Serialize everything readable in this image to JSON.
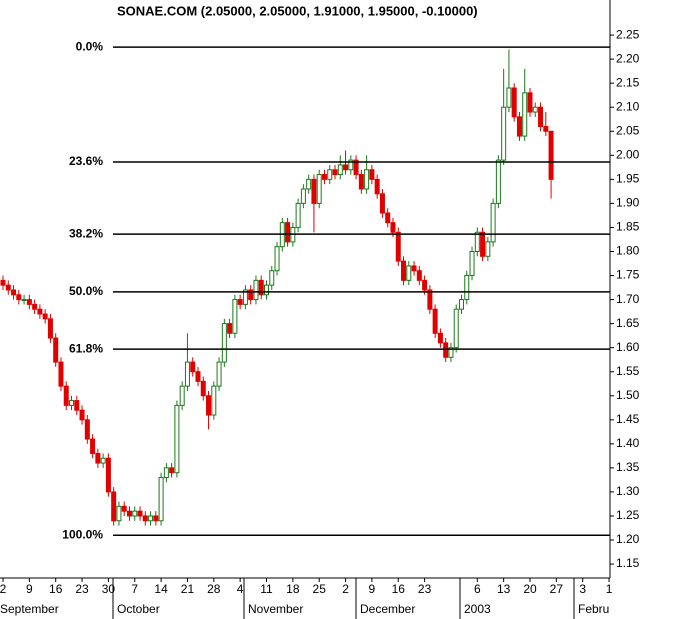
{
  "chart_data": {
    "type": "candlestick",
    "title": "SONAE.COM (2.05000, 2.05000, 1.91000, 1.95000, -0.10000)",
    "categories": [
      "2",
      null,
      null,
      null,
      null,
      "9",
      null,
      null,
      null,
      null,
      "16",
      null,
      null,
      null,
      null,
      "23",
      null,
      null,
      null,
      null,
      "30",
      null,
      null,
      null,
      null,
      "7",
      null,
      null,
      null,
      null,
      "14",
      null,
      null,
      null,
      null,
      "21",
      null,
      null,
      null,
      null,
      "28",
      null,
      null,
      null,
      null,
      "4",
      null,
      null,
      null,
      null,
      "11",
      null,
      null,
      null,
      null,
      "18",
      null,
      null,
      null,
      null,
      "25",
      null,
      null,
      null,
      null,
      "2",
      null,
      null,
      null,
      null,
      "9",
      null,
      null,
      null,
      null,
      "16",
      null,
      null,
      null,
      null,
      "23",
      null,
      null,
      null,
      null,
      null,
      null,
      null,
      null,
      null,
      "6",
      null,
      null,
      null,
      null,
      "13",
      null,
      null,
      null,
      null,
      "20",
      null,
      null,
      null,
      null,
      "27",
      null,
      null,
      null,
      null,
      "3",
      null,
      null,
      null,
      null,
      "1"
    ],
    "months": [
      "September",
      "October",
      "November",
      "December",
      "2003",
      "Febru"
    ],
    "open": [
      1.74,
      1.73,
      1.72,
      1.71,
      1.7,
      1.7,
      1.69,
      1.68,
      1.67,
      1.66,
      1.62,
      1.57,
      1.52,
      1.48,
      1.49,
      1.47,
      1.45,
      1.41,
      1.38,
      1.36,
      1.37,
      1.3,
      1.24,
      1.27,
      1.26,
      1.25,
      1.26,
      1.25,
      1.24,
      1.25,
      1.24,
      1.33,
      1.35,
      1.34,
      1.48,
      1.52,
      1.57,
      1.55,
      1.53,
      1.5,
      1.46,
      1.52,
      1.57,
      1.65,
      1.63,
      1.7,
      1.69,
      1.72,
      1.7,
      1.74,
      1.71,
      1.73,
      1.76,
      1.81,
      1.86,
      1.82,
      1.85,
      1.9,
      1.93,
      1.95,
      1.9,
      1.96,
      1.95,
      1.97,
      1.96,
      1.98,
      1.97,
      1.99,
      1.96,
      1.93,
      1.97,
      1.95,
      1.92,
      1.88,
      1.86,
      1.84,
      1.78,
      1.74,
      1.77,
      1.76,
      1.74,
      1.72,
      1.68,
      1.63,
      1.61,
      1.58,
      1.6,
      1.68,
      1.7,
      1.75,
      1.8,
      1.84,
      1.79,
      1.82,
      1.9,
      1.99,
      2.1,
      2.14,
      2.08,
      2.04,
      2.13,
      2.09,
      2.1,
      2.06,
      2.05,
      null,
      null,
      null,
      null,
      null,
      null,
      null,
      null,
      null,
      null,
      null
    ],
    "high": [
      1.75,
      1.74,
      1.73,
      1.72,
      1.71,
      1.71,
      1.7,
      1.69,
      1.68,
      1.67,
      1.63,
      1.58,
      1.53,
      1.5,
      1.5,
      1.48,
      1.46,
      1.42,
      1.39,
      1.38,
      1.38,
      1.31,
      1.28,
      1.28,
      1.27,
      1.27,
      1.27,
      1.26,
      1.26,
      1.26,
      1.34,
      1.36,
      1.36,
      1.49,
      1.53,
      1.63,
      1.58,
      1.56,
      1.54,
      1.51,
      1.53,
      1.58,
      1.66,
      1.66,
      1.71,
      1.71,
      1.73,
      1.73,
      1.75,
      1.75,
      1.74,
      1.77,
      1.82,
      1.87,
      1.87,
      1.86,
      1.91,
      1.94,
      1.96,
      1.96,
      1.97,
      1.97,
      1.98,
      1.98,
      2.0,
      2.01,
      2.0,
      2.0,
      1.97,
      2.0,
      1.98,
      1.96,
      1.93,
      1.89,
      1.87,
      1.85,
      1.79,
      1.78,
      1.78,
      1.77,
      1.75,
      1.73,
      1.69,
      1.64,
      1.62,
      1.61,
      1.69,
      1.71,
      1.76,
      1.81,
      1.85,
      1.85,
      1.83,
      1.91,
      2.0,
      2.18,
      2.22,
      2.15,
      2.09,
      2.18,
      2.14,
      2.11,
      2.11,
      2.09,
      2.05,
      null,
      null,
      null,
      null,
      null,
      null,
      null,
      null,
      null,
      null,
      null
    ],
    "low": [
      1.72,
      1.71,
      1.7,
      1.69,
      1.69,
      1.68,
      1.67,
      1.66,
      1.65,
      1.61,
      1.56,
      1.51,
      1.47,
      1.47,
      1.46,
      1.44,
      1.4,
      1.37,
      1.35,
      1.35,
      1.29,
      1.23,
      1.23,
      1.25,
      1.24,
      1.24,
      1.24,
      1.23,
      1.23,
      1.23,
      1.23,
      1.32,
      1.33,
      1.33,
      1.47,
      1.51,
      1.54,
      1.52,
      1.49,
      1.43,
      1.45,
      1.51,
      1.56,
      1.62,
      1.62,
      1.68,
      1.68,
      1.69,
      1.69,
      1.7,
      1.7,
      1.72,
      1.75,
      1.8,
      1.81,
      1.81,
      1.84,
      1.89,
      1.92,
      1.84,
      1.89,
      1.94,
      1.94,
      1.95,
      1.95,
      1.96,
      1.96,
      1.95,
      1.92,
      1.92,
      1.94,
      1.91,
      1.87,
      1.85,
      1.83,
      1.77,
      1.73,
      1.73,
      1.75,
      1.73,
      1.71,
      1.67,
      1.62,
      1.6,
      1.57,
      1.57,
      1.59,
      1.67,
      1.69,
      1.74,
      1.79,
      1.78,
      1.78,
      1.81,
      1.89,
      1.98,
      2.09,
      2.07,
      2.03,
      2.03,
      2.08,
      2.08,
      2.05,
      2.04,
      1.91,
      null,
      null,
      null,
      null,
      null,
      null,
      null,
      null,
      null,
      null,
      null
    ],
    "close": [
      1.73,
      1.72,
      1.71,
      1.7,
      1.7,
      1.69,
      1.68,
      1.67,
      1.66,
      1.62,
      1.57,
      1.52,
      1.48,
      1.49,
      1.47,
      1.45,
      1.41,
      1.38,
      1.36,
      1.37,
      1.3,
      1.24,
      1.27,
      1.26,
      1.25,
      1.26,
      1.25,
      1.24,
      1.25,
      1.24,
      1.33,
      1.35,
      1.34,
      1.48,
      1.52,
      1.57,
      1.55,
      1.53,
      1.5,
      1.46,
      1.52,
      1.57,
      1.65,
      1.63,
      1.7,
      1.69,
      1.72,
      1.7,
      1.74,
      1.71,
      1.73,
      1.76,
      1.81,
      1.86,
      1.82,
      1.85,
      1.9,
      1.93,
      1.95,
      1.9,
      1.96,
      1.95,
      1.97,
      1.96,
      1.98,
      1.97,
      1.99,
      1.96,
      1.93,
      1.97,
      1.95,
      1.92,
      1.88,
      1.86,
      1.84,
      1.78,
      1.74,
      1.77,
      1.76,
      1.74,
      1.72,
      1.68,
      1.63,
      1.61,
      1.58,
      1.6,
      1.68,
      1.7,
      1.75,
      1.8,
      1.84,
      1.79,
      1.82,
      1.9,
      1.99,
      2.1,
      2.14,
      2.08,
      2.04,
      2.13,
      2.09,
      2.1,
      2.06,
      2.05,
      1.95,
      null,
      null,
      null,
      null,
      null,
      null,
      null,
      null,
      null,
      null,
      null
    ],
    "up_color": "#1a7a1a",
    "down_color": "#e00000",
    "fib_levels": [
      {
        "label": "0.0%",
        "value": 2.225
      },
      {
        "label": "23.6%",
        "value": 1.986
      },
      {
        "label": "38.2%",
        "value": 1.836
      },
      {
        "label": "50.0%",
        "value": 1.716
      },
      {
        "label": "61.8%",
        "value": 1.597
      },
      {
        "label": "100.0%",
        "value": 1.21
      }
    ],
    "ylim": [
      1.121,
      2.323
    ],
    "yticks": [
      1.15,
      {
        "value": 1.2,
        "label": "1.20"
      },
      1.25,
      {
        "value": 1.3,
        "label": "1.30"
      },
      1.35,
      {
        "value": 1.4,
        "label": "1.40"
      },
      1.45,
      {
        "value": 1.5,
        "label": "1.50"
      },
      1.55,
      {
        "value": 1.6,
        "label": "1.60"
      },
      1.65,
      {
        "value": 1.7,
        "label": "1.70"
      },
      1.75,
      {
        "value": 1.8,
        "label": "1.80"
      },
      1.85,
      {
        "value": 1.9,
        "label": "1.90"
      },
      1.95,
      {
        "value": 2,
        "label": "2.00"
      },
      2.05,
      {
        "value": 2.1,
        "label": "2.10"
      },
      2.15,
      {
        "value": 2.2,
        "label": "2.20"
      },
      2.25
    ]
  }
}
